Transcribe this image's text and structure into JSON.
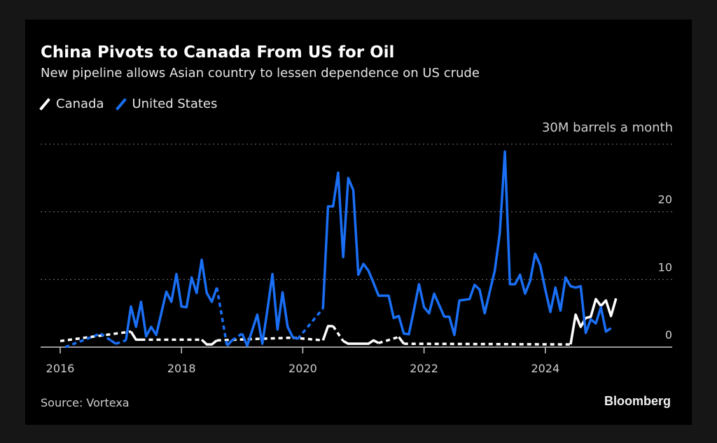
{
  "chart_data": {
    "type": "line",
    "title": "China Pivots to Canada From US for Oil",
    "subtitle": "New pipeline allows Asian country to lessen dependence on US crude",
    "unit_label": "30M barrels a month",
    "source": "Source: Vortexa",
    "logo": "Bloomberg",
    "x_start": "2016-01",
    "x_interval": "month",
    "x_ticks": [
      "2016",
      "2018",
      "2020",
      "2022",
      "2024"
    ],
    "y_ticks": [
      {
        "value": 0,
        "label": "0"
      },
      {
        "value": 10,
        "label": "10"
      },
      {
        "value": 20,
        "label": "20"
      },
      {
        "value": 30,
        "label": ""
      }
    ],
    "ylim": [
      0,
      30
    ],
    "grid": "horizontal dotted",
    "legend_placement": "top-left",
    "gap_style": "dashed",
    "series": [
      {
        "name": "Canada",
        "color": "#ffffff",
        "values": [
          0.9,
          null,
          null,
          null,
          null,
          null,
          null,
          null,
          null,
          null,
          null,
          null,
          null,
          null,
          2.3,
          1.1,
          1.1,
          null,
          null,
          null,
          null,
          null,
          null,
          null,
          null,
          null,
          null,
          null,
          1.1,
          0.4,
          0.4,
          1.0,
          null,
          null,
          null,
          null,
          null,
          null,
          null,
          null,
          null,
          null,
          null,
          null,
          null,
          null,
          1.4,
          null,
          null,
          null,
          null,
          null,
          1.0,
          3.1,
          3.1,
          null,
          0.9,
          0.5,
          0.5,
          0.5,
          0.5,
          0.5,
          1.0,
          0.6,
          null,
          null,
          null,
          1.5,
          0.5,
          null,
          null,
          null,
          null,
          null,
          null,
          null,
          null,
          null,
          null,
          null,
          null,
          null,
          null,
          null,
          null,
          null,
          null,
          null,
          null,
          null,
          null,
          null,
          null,
          null,
          null,
          null,
          null,
          null,
          null,
          null,
          null,
          0.4,
          4.8,
          3.0,
          4.3,
          4.5,
          7.1,
          6.1,
          6.9,
          4.6,
          7.2
        ]
      },
      {
        "name": "United States",
        "color": "#1a6ff5",
        "values": [
          null,
          0.0,
          null,
          null,
          null,
          null,
          null,
          null,
          2.0,
          null,
          1.0,
          0.5,
          null,
          1.0,
          6.0,
          3.0,
          6.7,
          1.6,
          3.0,
          1.8,
          5.0,
          8.2,
          6.7,
          10.8,
          6.0,
          5.9,
          10.3,
          8.0,
          12.9,
          8.0,
          6.7,
          8.8,
          null,
          0.2,
          1.0,
          null,
          2.0,
          0.2,
          2.5,
          4.8,
          0.5,
          5.5,
          10.8,
          2.6,
          8.1,
          3.0,
          1.5,
          1.2,
          null,
          null,
          null,
          null,
          5.7,
          20.8,
          20.8,
          25.8,
          13.3,
          25.0,
          23.2,
          10.7,
          12.3,
          11.3,
          9.5,
          7.6,
          7.6,
          7.6,
          4.3,
          4.6,
          2.0,
          1.9,
          5.5,
          9.3,
          5.9,
          5.0,
          7.9,
          6.2,
          4.5,
          4.5,
          1.8,
          6.9,
          7.0,
          7.1,
          9.2,
          8.5,
          5.0,
          8.2,
          11.3,
          16.9,
          28.9,
          9.3,
          9.3,
          10.7,
          7.9,
          9.8,
          13.8,
          12.1,
          8.5,
          5.2,
          8.8,
          5.4,
          10.3,
          9.0,
          8.8,
          9.0,
          2.1,
          4.1,
          3.5,
          5.9,
          2.3,
          2.8
        ]
      }
    ]
  }
}
